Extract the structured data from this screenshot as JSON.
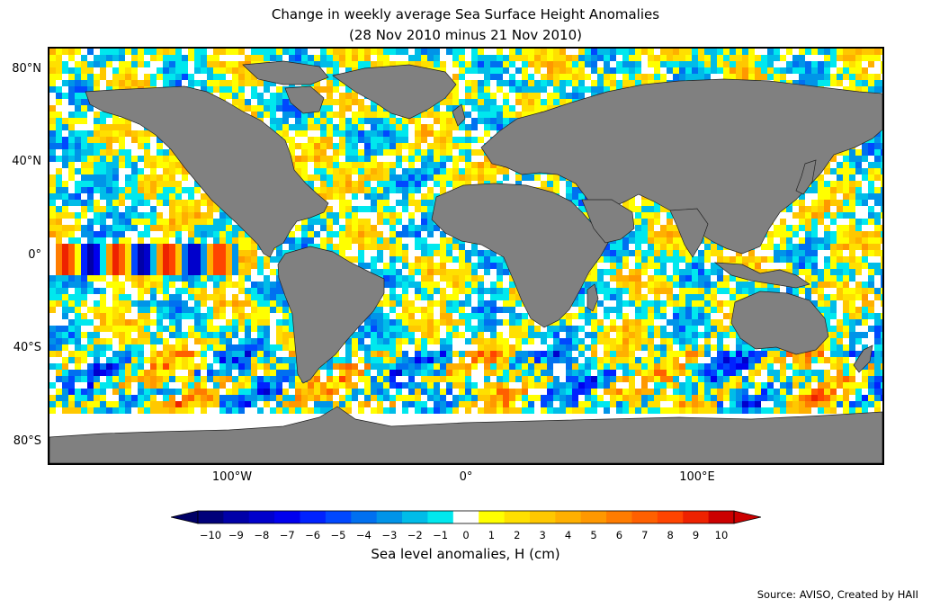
{
  "title_line1": "Change in weekly average Sea Surface Height Anomalies",
  "title_line2": "(28 Nov 2010 minus 21 Nov 2010)",
  "lat_labels": [
    "80°N",
    "40°N",
    "0°",
    "40°S",
    "80°S"
  ],
  "lat_values": [
    80,
    40,
    0,
    -40,
    -80
  ],
  "lon_labels": [
    "100°W",
    "0°",
    "100°E"
  ],
  "lon_values": [
    -100,
    0,
    100
  ],
  "map_extent": {
    "lon": [
      -180,
      180
    ],
    "lat": [
      -90,
      90
    ]
  },
  "colors": {
    "land": "#808080",
    "ocean_zero": "#ffffff",
    "frame": "#000000"
  },
  "colorbar": {
    "ticks": [
      "−10",
      "−9",
      "−8",
      "−7",
      "−6",
      "−5",
      "−4",
      "−3",
      "−2",
      "−1",
      "0",
      "1",
      "2",
      "3",
      "4",
      "5",
      "6",
      "7",
      "8",
      "9",
      "10"
    ],
    "range": [
      -10,
      10
    ],
    "extend": "both",
    "segment_colors": [
      "#00007a",
      "#0000a8",
      "#0000cc",
      "#0000ee",
      "#0022ff",
      "#0048ff",
      "#0070f0",
      "#0094e8",
      "#00bce8",
      "#00e8ee",
      "#ffffff",
      "#ffff00",
      "#ffe000",
      "#ffc800",
      "#ffb000",
      "#ff9800",
      "#ff7c00",
      "#ff6000",
      "#ff4400",
      "#ee2200",
      "#cc0000"
    ],
    "low_extend_color": "#000066",
    "high_extend_color": "#cc0000",
    "label": "Sea level anomalies, H (cm)"
  },
  "source": "Source: AVISO, Created by HAII"
}
